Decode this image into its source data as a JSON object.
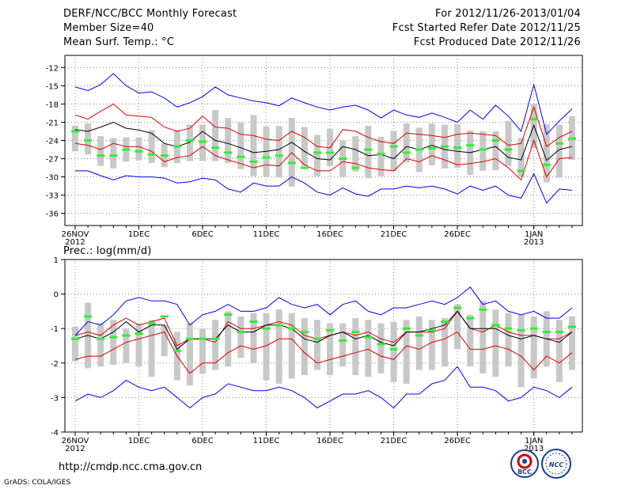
{
  "header": {
    "title": "DERF/NCC/BCC Monthly Forecast",
    "member_size": "Member Size=40",
    "variable": "Mean Surf. Temp.: °C",
    "forecast_range": "For 2012/11/26-2013/01/04",
    "started_date": "Fcst Started Refer Date 2012/11/25",
    "produced_date": "Fcst Produced Date 2012/11/26"
  },
  "colors": {
    "envelope": "#0000ee",
    "quartile": "#dd0000",
    "mean": "#000000",
    "box": "#c8c8c8",
    "marker": "#33ee33",
    "grid": "#888888"
  },
  "chart_data": [
    {
      "type": "line",
      "name": "temperature",
      "title": "Mean Surf. Temp.: °C",
      "ylim": [
        -38,
        -10
      ],
      "yticks": [
        -12,
        -15,
        -18,
        -21,
        -24,
        -27,
        -30,
        -33,
        -36
      ],
      "x_labels": [
        {
          "day": 0,
          "label": "26NOV",
          "sub": "2012"
        },
        {
          "day": 5,
          "label": "1DEC",
          "sub": ""
        },
        {
          "day": 10,
          "label": "6DEC",
          "sub": ""
        },
        {
          "day": 15,
          "label": "11DEC",
          "sub": ""
        },
        {
          "day": 20,
          "label": "16DEC",
          "sub": ""
        },
        {
          "day": 25,
          "label": "21DEC",
          "sub": ""
        },
        {
          "day": 30,
          "label": "26DEC",
          "sub": ""
        },
        {
          "day": 36,
          "label": "1JAN",
          "sub": "2013"
        }
      ],
      "n_days": 40,
      "series": [
        {
          "name": "max",
          "color": "#0000ee",
          "values": [
            -15.2,
            -15.8,
            -14.8,
            -13.0,
            -15.0,
            -16.2,
            -16.0,
            -17.0,
            -18.5,
            -17.8,
            -16.8,
            -15.2,
            -16.5,
            -17.0,
            -17.5,
            -17.8,
            -18.3,
            -17.0,
            -17.8,
            -18.5,
            -19.0,
            -18.5,
            -18.2,
            -19.0,
            -20.3,
            -19.0,
            -19.8,
            -20.2,
            -19.5,
            -20.2,
            -21.0,
            -19.0,
            -20.5,
            -18.2,
            -20.0,
            -22.5,
            -14.8,
            -23.0,
            -20.8,
            -18.8
          ]
        },
        {
          "name": "upper_quartile",
          "color": "#dd0000",
          "values": [
            -19.8,
            -20.5,
            -19.2,
            -18.0,
            -19.8,
            -20.0,
            -20.2,
            -21.8,
            -22.5,
            -22.0,
            -20.0,
            -21.8,
            -22.0,
            -23.0,
            -23.2,
            -23.8,
            -24.0,
            -22.5,
            -23.5,
            -25.0,
            -25.2,
            -22.2,
            -22.5,
            -23.5,
            -24.2,
            -24.5,
            -22.8,
            -23.0,
            -23.2,
            -23.5,
            -23.0,
            -22.8,
            -23.0,
            -23.2,
            -24.8,
            -24.5,
            -18.5,
            -25.0,
            -23.5,
            -22.5
          ]
        },
        {
          "name": "mean",
          "color": "#000000",
          "values": [
            -22.2,
            -22.5,
            -21.8,
            -21.0,
            -22.0,
            -22.3,
            -22.8,
            -24.5,
            -25.0,
            -24.3,
            -22.5,
            -24.0,
            -24.5,
            -25.2,
            -26.0,
            -25.8,
            -25.5,
            -24.3,
            -25.8,
            -27.0,
            -27.2,
            -25.0,
            -25.5,
            -26.5,
            -26.3,
            -27.0,
            -25.0,
            -25.5,
            -24.8,
            -25.5,
            -25.8,
            -26.0,
            -25.5,
            -25.0,
            -26.8,
            -27.2,
            -21.5,
            -27.3,
            -25.5,
            -25.0
          ]
        },
        {
          "name": "lower_quartile",
          "color": "#dd0000",
          "values": [
            -24.5,
            -24.8,
            -25.5,
            -24.5,
            -25.0,
            -25.0,
            -25.8,
            -27.5,
            -26.8,
            -26.5,
            -25.0,
            -26.5,
            -27.2,
            -27.8,
            -28.5,
            -28.0,
            -28.2,
            -26.0,
            -28.0,
            -29.0,
            -29.0,
            -27.5,
            -27.8,
            -28.5,
            -28.8,
            -29.0,
            -27.0,
            -27.5,
            -26.5,
            -27.2,
            -28.0,
            -27.8,
            -27.5,
            -27.0,
            -28.5,
            -30.5,
            -24.0,
            -30.0,
            -27.0,
            -26.8
          ]
        },
        {
          "name": "min",
          "color": "#0000ee",
          "values": [
            -29.0,
            -29.0,
            -29.8,
            -30.5,
            -29.8,
            -30.0,
            -30.0,
            -30.2,
            -31.0,
            -30.8,
            -30.2,
            -30.5,
            -32.0,
            -32.5,
            -31.0,
            -31.5,
            -31.5,
            -30.0,
            -31.0,
            -32.5,
            -33.0,
            -31.8,
            -32.8,
            -33.2,
            -32.0,
            -32.0,
            -31.5,
            -31.8,
            -31.5,
            -32.0,
            -32.8,
            -31.5,
            -32.2,
            -31.5,
            -33.0,
            -33.5,
            -29.5,
            -34.3,
            -32.0,
            -32.2
          ]
        }
      ],
      "boxes": {
        "low": [
          -25.8,
          -26.3,
          -28.2,
          -28.6,
          -27.5,
          -27.3,
          -27.7,
          -28.4,
          -27.7,
          -27.4,
          -27.4,
          -27.4,
          -27.7,
          -28.7,
          -29.9,
          -30.0,
          -30.1,
          -31.6,
          -28.2,
          -29.9,
          -28.2,
          -30.0,
          -29.1,
          -30.2,
          -29.9,
          -29.1,
          -27.6,
          -29.2,
          -28.1,
          -28.6,
          -28.5,
          -29.7,
          -29.0,
          -28.9,
          -28.2,
          -30.0,
          -25.3,
          -30.9,
          -30.1,
          -27.2
        ],
        "high": [
          -21.6,
          -21.2,
          -23.3,
          -23.6,
          -23.5,
          -23.5,
          -22.3,
          -24.5,
          -22.3,
          -21.4,
          -21.4,
          -19.0,
          -20.3,
          -21.0,
          -19.8,
          -21.7,
          -21.6,
          -20.3,
          -21.8,
          -23.1,
          -22.1,
          -24.0,
          -23.3,
          -21.6,
          -23.4,
          -22.4,
          -21.2,
          -21.9,
          -21.2,
          -21.4,
          -21.3,
          -22.4,
          -22.5,
          -22.5,
          -20.8,
          -23.6,
          -18.0,
          -21.3,
          -21.4,
          -20.0
        ]
      },
      "markers": [
        -22.5,
        -24.0,
        -26.5,
        -26.5,
        -25.5,
        -25.8,
        -26.3,
        -26.5,
        -25.0,
        -24.0,
        -24.2,
        -25.2,
        -26.0,
        -26.7,
        -27.5,
        -26.8,
        -26.5,
        -27.7,
        -28.5,
        -26.0,
        -26.0,
        -27.0,
        -28.5,
        -25.5,
        -26.2,
        -25.0,
        -26.0,
        -25.5,
        -25.3,
        -25.0,
        -25.2,
        -24.8,
        -25.5,
        -24.0,
        -25.5,
        -29.0,
        -20.5,
        -28.0,
        -24.5,
        -23.7
      ]
    },
    {
      "type": "line",
      "name": "precipitation",
      "title": "Prec.: log(mm/d)",
      "ylim": [
        -4,
        1
      ],
      "yticks": [
        1,
        0,
        -1,
        -2,
        -3,
        -4
      ],
      "x_labels": [
        {
          "day": 0,
          "label": "26NOV",
          "sub": "2012"
        },
        {
          "day": 5,
          "label": "1DEC",
          "sub": ""
        },
        {
          "day": 10,
          "label": "6DEC",
          "sub": ""
        },
        {
          "day": 15,
          "label": "11DEC",
          "sub": ""
        },
        {
          "day": 20,
          "label": "16DEC",
          "sub": ""
        },
        {
          "day": 25,
          "label": "21DEC",
          "sub": ""
        },
        {
          "day": 30,
          "label": "26DEC",
          "sub": ""
        },
        {
          "day": 36,
          "label": "1JAN",
          "sub": "2013"
        }
      ],
      "n_days": 40,
      "series": [
        {
          "name": "max",
          "color": "#0000ee",
          "values": [
            -1.2,
            -0.8,
            -0.9,
            -0.6,
            -0.2,
            -0.1,
            -0.2,
            -0.2,
            -0.3,
            -0.9,
            -0.6,
            -0.5,
            -0.3,
            -0.5,
            -0.5,
            -0.4,
            -0.1,
            -0.3,
            -0.4,
            -0.3,
            -0.6,
            -0.3,
            -0.2,
            -0.5,
            -0.6,
            -0.4,
            -0.4,
            -0.3,
            -0.2,
            -0.3,
            -0.1,
            0.2,
            -0.3,
            -0.2,
            -0.5,
            -0.6,
            -0.5,
            -0.7,
            -0.7,
            -0.4
          ]
        },
        {
          "name": "upper_quartile",
          "color": "#dd0000",
          "values": [
            -1.2,
            -1.1,
            -1.2,
            -0.9,
            -0.7,
            -0.9,
            -0.8,
            -0.7,
            -1.5,
            -1.3,
            -1.3,
            -1.4,
            -0.8,
            -1.0,
            -1.0,
            -0.9,
            -0.8,
            -0.9,
            -1.2,
            -1.3,
            -1.2,
            -1.1,
            -1.2,
            -1.1,
            -1.3,
            -1.4,
            -1.1,
            -1.1,
            -1.1,
            -1.0,
            -0.5,
            -1.0,
            -1.1,
            -0.9,
            -1.1,
            -1.2,
            -1.2,
            -1.3,
            -1.3,
            -1.1
          ]
        },
        {
          "name": "mean",
          "color": "#000000",
          "values": [
            -1.3,
            -1.2,
            -1.3,
            -1.1,
            -0.8,
            -1.1,
            -0.9,
            -0.9,
            -1.6,
            -1.3,
            -1.3,
            -1.3,
            -0.9,
            -1.1,
            -1.1,
            -0.9,
            -0.9,
            -1.0,
            -1.3,
            -1.4,
            -1.2,
            -1.1,
            -1.3,
            -1.2,
            -1.4,
            -1.5,
            -1.1,
            -1.1,
            -1.0,
            -0.9,
            -0.5,
            -1.0,
            -1.0,
            -1.0,
            -1.2,
            -1.3,
            -1.2,
            -1.3,
            -1.4,
            -1.1
          ]
        },
        {
          "name": "lower_quartile",
          "color": "#dd0000",
          "values": [
            -1.9,
            -1.8,
            -1.8,
            -1.6,
            -1.4,
            -1.3,
            -1.2,
            -1.1,
            -1.8,
            -2.3,
            -2.0,
            -2.0,
            -1.7,
            -1.5,
            -1.6,
            -1.5,
            -1.3,
            -1.3,
            -1.7,
            -2.0,
            -1.9,
            -1.8,
            -1.7,
            -1.6,
            -1.8,
            -1.9,
            -1.5,
            -1.6,
            -1.4,
            -1.3,
            -1.1,
            -1.6,
            -1.6,
            -1.5,
            -1.6,
            -1.8,
            -2.2,
            -1.8,
            -2.0,
            -1.7
          ]
        },
        {
          "name": "min",
          "color": "#0000ee",
          "values": [
            -3.1,
            -2.9,
            -3.0,
            -2.8,
            -2.5,
            -2.7,
            -2.8,
            -2.7,
            -3.0,
            -3.3,
            -3.0,
            -2.9,
            -2.6,
            -2.7,
            -2.8,
            -2.8,
            -2.7,
            -2.8,
            -3.0,
            -3.3,
            -3.1,
            -2.9,
            -2.9,
            -2.8,
            -3.0,
            -3.3,
            -2.9,
            -2.9,
            -2.6,
            -2.5,
            -2.1,
            -2.7,
            -2.7,
            -2.8,
            -3.1,
            -3.0,
            -2.7,
            -2.8,
            -3.0,
            -2.7
          ]
        }
      ],
      "boxes": {
        "low": [
          -1.95,
          -2.15,
          -2.1,
          -2.05,
          -2.0,
          -2.1,
          -2.4,
          -1.8,
          -2.5,
          -2.65,
          -2.3,
          -2.2,
          -2.1,
          -1.85,
          -2.0,
          -2.5,
          -2.6,
          -2.45,
          -2.35,
          -2.2,
          -2.35,
          -2.1,
          -2.35,
          -2.4,
          -2.3,
          -2.55,
          -2.6,
          -2.2,
          -2.2,
          -2.1,
          -1.6,
          -2.1,
          -2.3,
          -2.4,
          -2.1,
          -2.7,
          -2.45,
          -2.1,
          -2.55,
          -2.2
        ],
        "high": [
          -0.95,
          -0.25,
          -0.85,
          -0.75,
          -1.0,
          -0.85,
          -0.75,
          -0.9,
          -1.1,
          -0.85,
          -1.0,
          -0.75,
          -0.5,
          -0.65,
          -0.55,
          -0.55,
          -0.45,
          -0.55,
          -0.7,
          -0.75,
          -0.85,
          -0.85,
          -0.7,
          -0.75,
          -0.85,
          -0.8,
          -0.75,
          -0.65,
          -0.75,
          -0.7,
          -0.3,
          -0.6,
          -0.2,
          -0.45,
          -0.55,
          -0.6,
          -0.65,
          -0.5,
          -0.75,
          -0.65
        ]
      },
      "markers": [
        -1.3,
        -0.65,
        -1.3,
        -1.25,
        -1.2,
        -1.15,
        -0.85,
        -0.65,
        -1.65,
        -1.3,
        -1.3,
        -1.3,
        -0.6,
        -1.1,
        -0.8,
        -1.0,
        -0.9,
        -1.0,
        -1.1,
        -1.3,
        -1.05,
        -1.35,
        -1.1,
        -1.25,
        -1.45,
        -1.6,
        -1.0,
        -1.2,
        -1.05,
        -0.8,
        -0.4,
        -0.7,
        -0.45,
        -0.9,
        -1.0,
        -1.05,
        -1.0,
        -1.1,
        -1.1,
        -0.95
      ]
    }
  ],
  "footer": {
    "url": "http://cmdp.ncc.cma.gov.cn",
    "credit": "GrADS: COLA/IGES",
    "logo_bcc": "BCC",
    "logo_ncc": "NCC"
  }
}
